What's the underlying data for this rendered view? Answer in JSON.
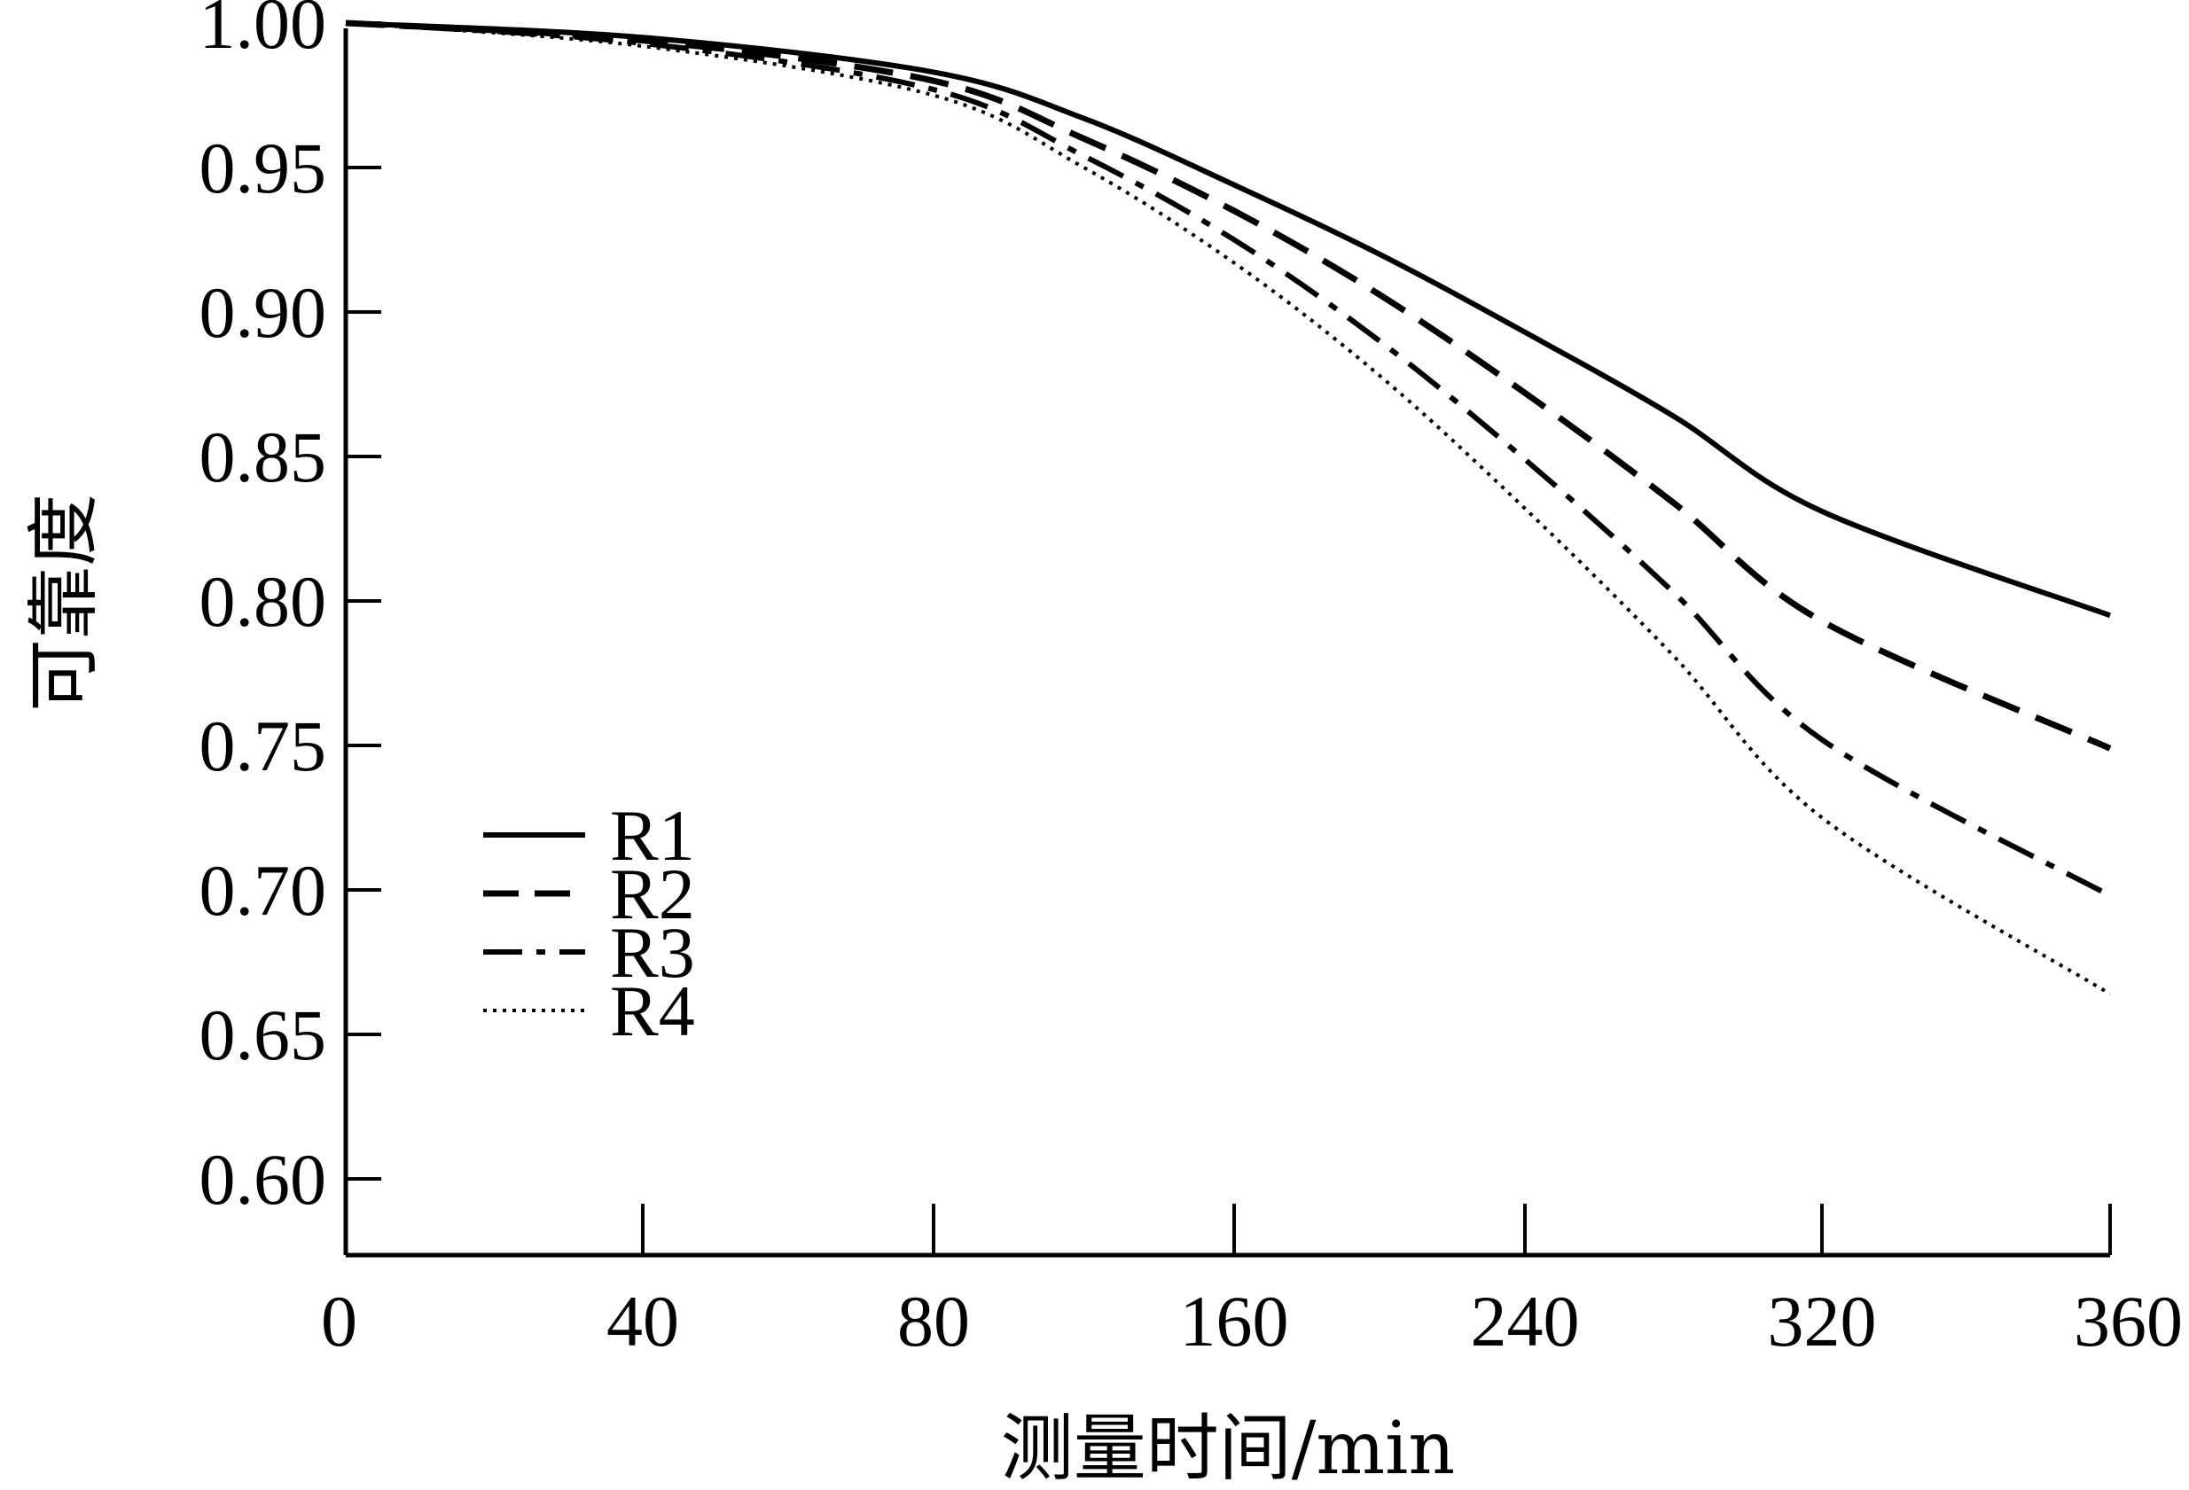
{
  "chart_data": {
    "type": "line",
    "title": "",
    "xlabel": "测量时间/min",
    "ylabel": "可靠度",
    "x_ticks": [
      0,
      40,
      80,
      160,
      240,
      320,
      360
    ],
    "y_ticks": [
      "0.60",
      "0.65",
      "0.70",
      "0.75",
      "0.80",
      "0.85",
      "0.90",
      "0.95",
      "1.00"
    ],
    "ylim": [
      0.575,
      1.0
    ],
    "grid": false,
    "legend_position": "lower-left",
    "series": [
      {
        "name": "R1",
        "style": "solid",
        "color": "#000000",
        "x": [
          0,
          40,
          80,
          120,
          160,
          200,
          240,
          280,
          320,
          360
        ],
        "y": [
          1.0,
          0.995,
          0.983,
          0.967,
          0.944,
          0.92,
          0.893,
          0.864,
          0.831,
          0.795
        ]
      },
      {
        "name": "R2",
        "style": "dashed",
        "color": "#000000",
        "x": [
          0,
          40,
          80,
          120,
          160,
          200,
          240,
          280,
          320,
          360
        ],
        "y": [
          1.0,
          0.994,
          0.98,
          0.96,
          0.935,
          0.906,
          0.872,
          0.834,
          0.793,
          0.749
        ]
      },
      {
        "name": "R3",
        "style": "dash-dot",
        "color": "#000000",
        "x": [
          0,
          40,
          80,
          120,
          160,
          200,
          240,
          280,
          320,
          360
        ],
        "y": [
          1.0,
          0.993,
          0.977,
          0.954,
          0.925,
          0.89,
          0.849,
          0.803,
          0.752,
          0.698
        ]
      },
      {
        "name": "R4",
        "style": "dotted",
        "color": "#000000",
        "x": [
          0,
          40,
          80,
          120,
          160,
          200,
          240,
          280,
          320,
          360
        ],
        "y": [
          1.0,
          0.992,
          0.975,
          0.95,
          0.917,
          0.878,
          0.832,
          0.781,
          0.725,
          0.664
        ]
      }
    ]
  }
}
